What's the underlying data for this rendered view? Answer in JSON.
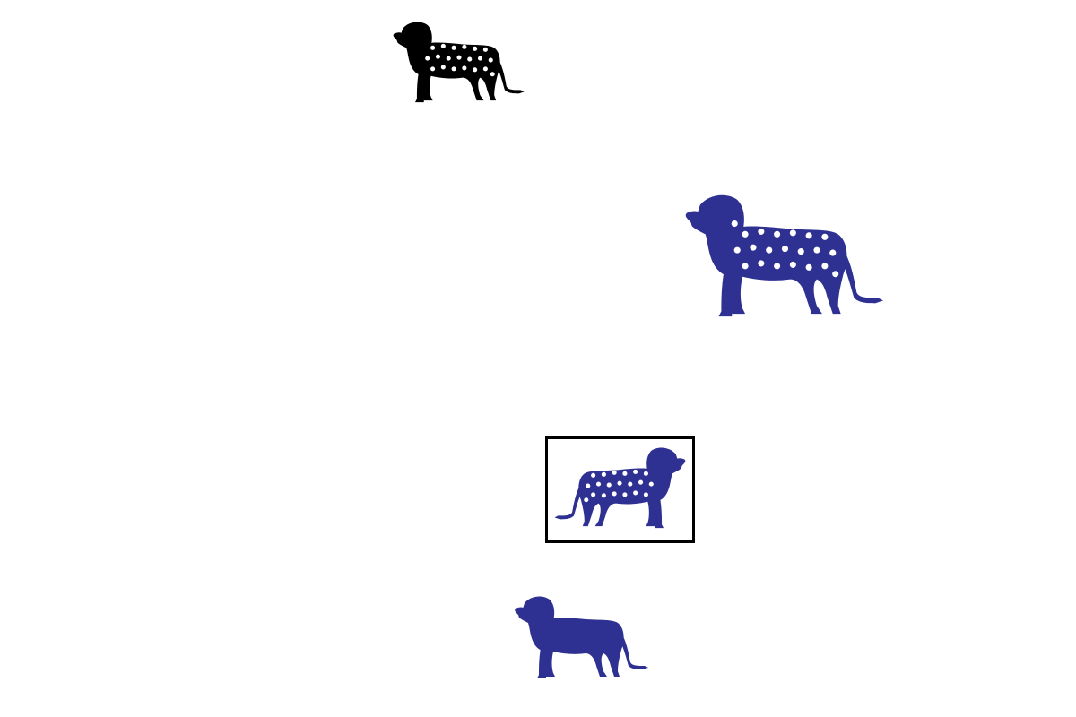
{
  "colors": {
    "background": "#ffffff",
    "black_lion": "#000000",
    "blue_lion": "#2e3192",
    "spots": "#ffffff",
    "selection_border": "#000000"
  },
  "figures": [
    {
      "icon": "spotted-lion-icon",
      "color": "black",
      "spotted": true,
      "facing": "left",
      "selected": false
    },
    {
      "icon": "spotted-lion-icon",
      "color": "blue",
      "spotted": true,
      "facing": "left",
      "selected": false
    },
    {
      "icon": "spotted-lion-icon",
      "color": "blue",
      "spotted": true,
      "facing": "right",
      "selected": true
    },
    {
      "icon": "lion-icon",
      "color": "blue",
      "spotted": false,
      "facing": "left",
      "selected": false
    }
  ]
}
